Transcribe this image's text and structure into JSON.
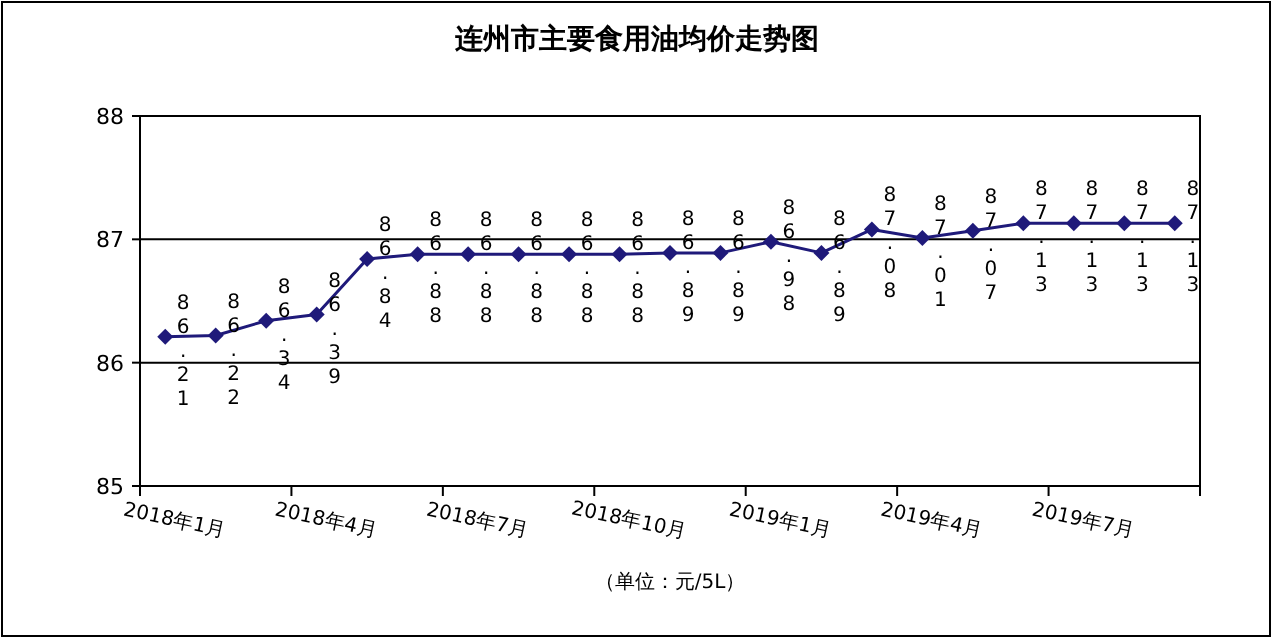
{
  "chart_data": {
    "type": "line",
    "title": "连州市主要食用油均价走势图",
    "categories": [
      "2018年1月",
      null,
      null,
      "2018年4月",
      null,
      null,
      "2018年7月",
      null,
      null,
      "2018年10月",
      null,
      null,
      "2019年1月",
      null,
      null,
      "2019年4月",
      null,
      null,
      "2019年7月",
      null,
      null
    ],
    "series": [
      {
        "color": "#1f1a7a",
        "values": [
          86.21,
          86.22,
          86.34,
          86.39,
          86.84,
          86.88,
          86.88,
          86.88,
          86.88,
          86.88,
          86.89,
          86.89,
          86.98,
          86.89,
          87.08,
          87.01,
          87.07,
          87.13,
          87.13,
          87.13,
          87.13
        ]
      }
    ],
    "ylim": [
      85,
      88
    ],
    "yticks": [
      85,
      86,
      87,
      88
    ],
    "grid": "y",
    "marker": "diamond",
    "line_style": "solid",
    "data_labels": true,
    "annotations": [
      "（单位：元/5L）"
    ]
  }
}
